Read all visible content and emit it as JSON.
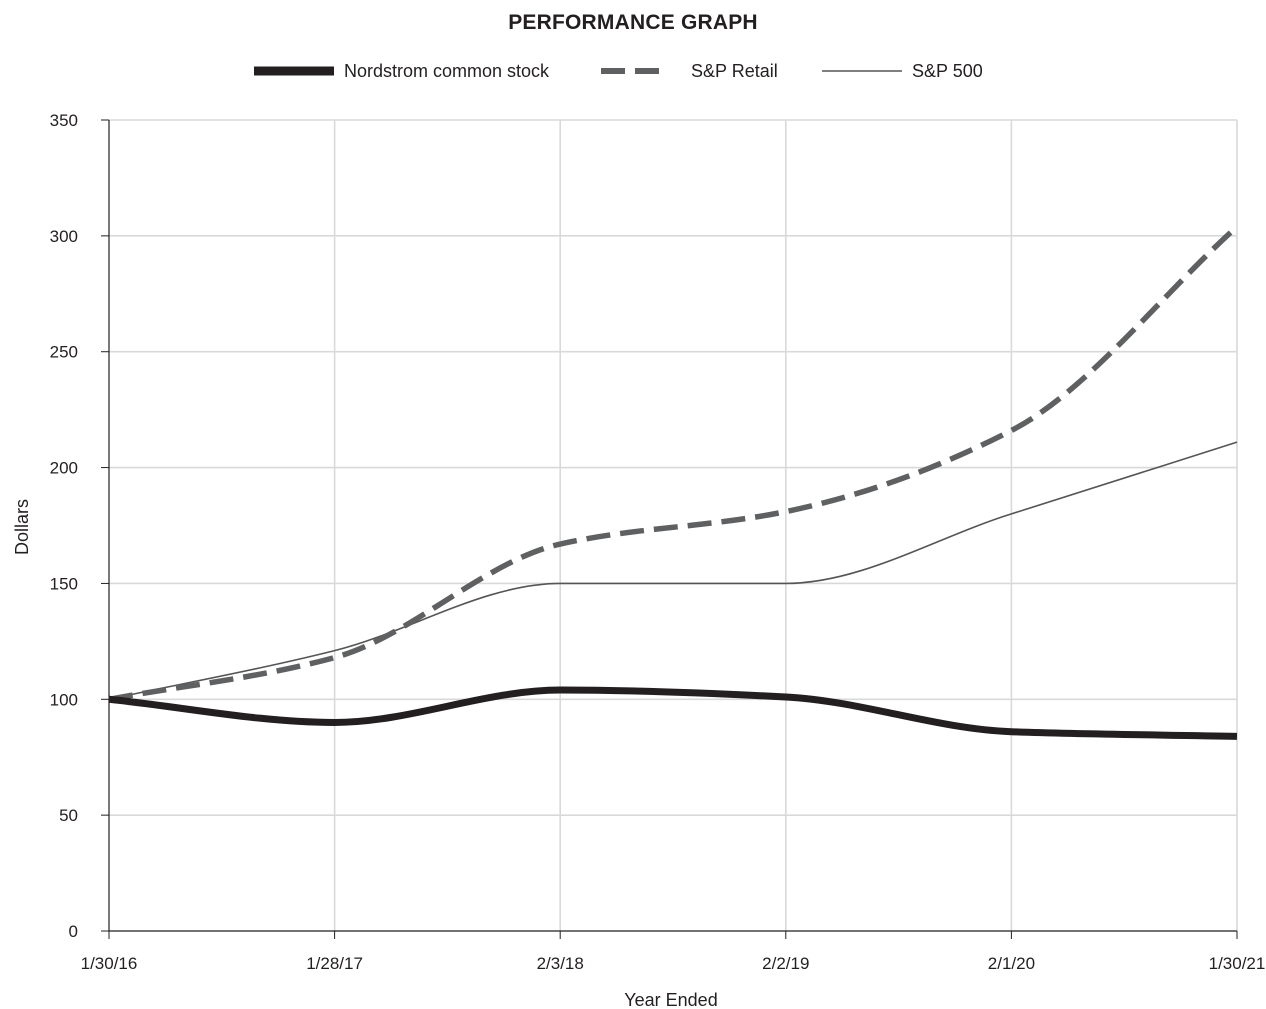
{
  "chart_data": {
    "type": "line",
    "title": "PERFORMANCE GRAPH",
    "xlabel": "Year Ended",
    "ylabel": "Dollars",
    "categories": [
      "1/30/16",
      "1/28/17",
      "2/3/18",
      "2/2/19",
      "2/1/20",
      "1/30/21"
    ],
    "ylim": [
      0,
      350
    ],
    "yticks": [
      0,
      50,
      100,
      150,
      200,
      250,
      300,
      350
    ],
    "grid": true,
    "legend_position": "top-center",
    "series": [
      {
        "name": "Nordstrom common stock",
        "values": [
          100,
          90,
          104,
          101,
          86,
          84
        ],
        "color": "#231f20",
        "style": "solid-thick"
      },
      {
        "name": "S&P Retail",
        "values": [
          100,
          118,
          167,
          181,
          216,
          304
        ],
        "color": "#5f6061",
        "style": "dashed"
      },
      {
        "name": "S&P 500",
        "values": [
          100,
          121,
          150,
          150,
          180,
          211
        ],
        "color": "#555555",
        "style": "solid-thin"
      }
    ]
  }
}
